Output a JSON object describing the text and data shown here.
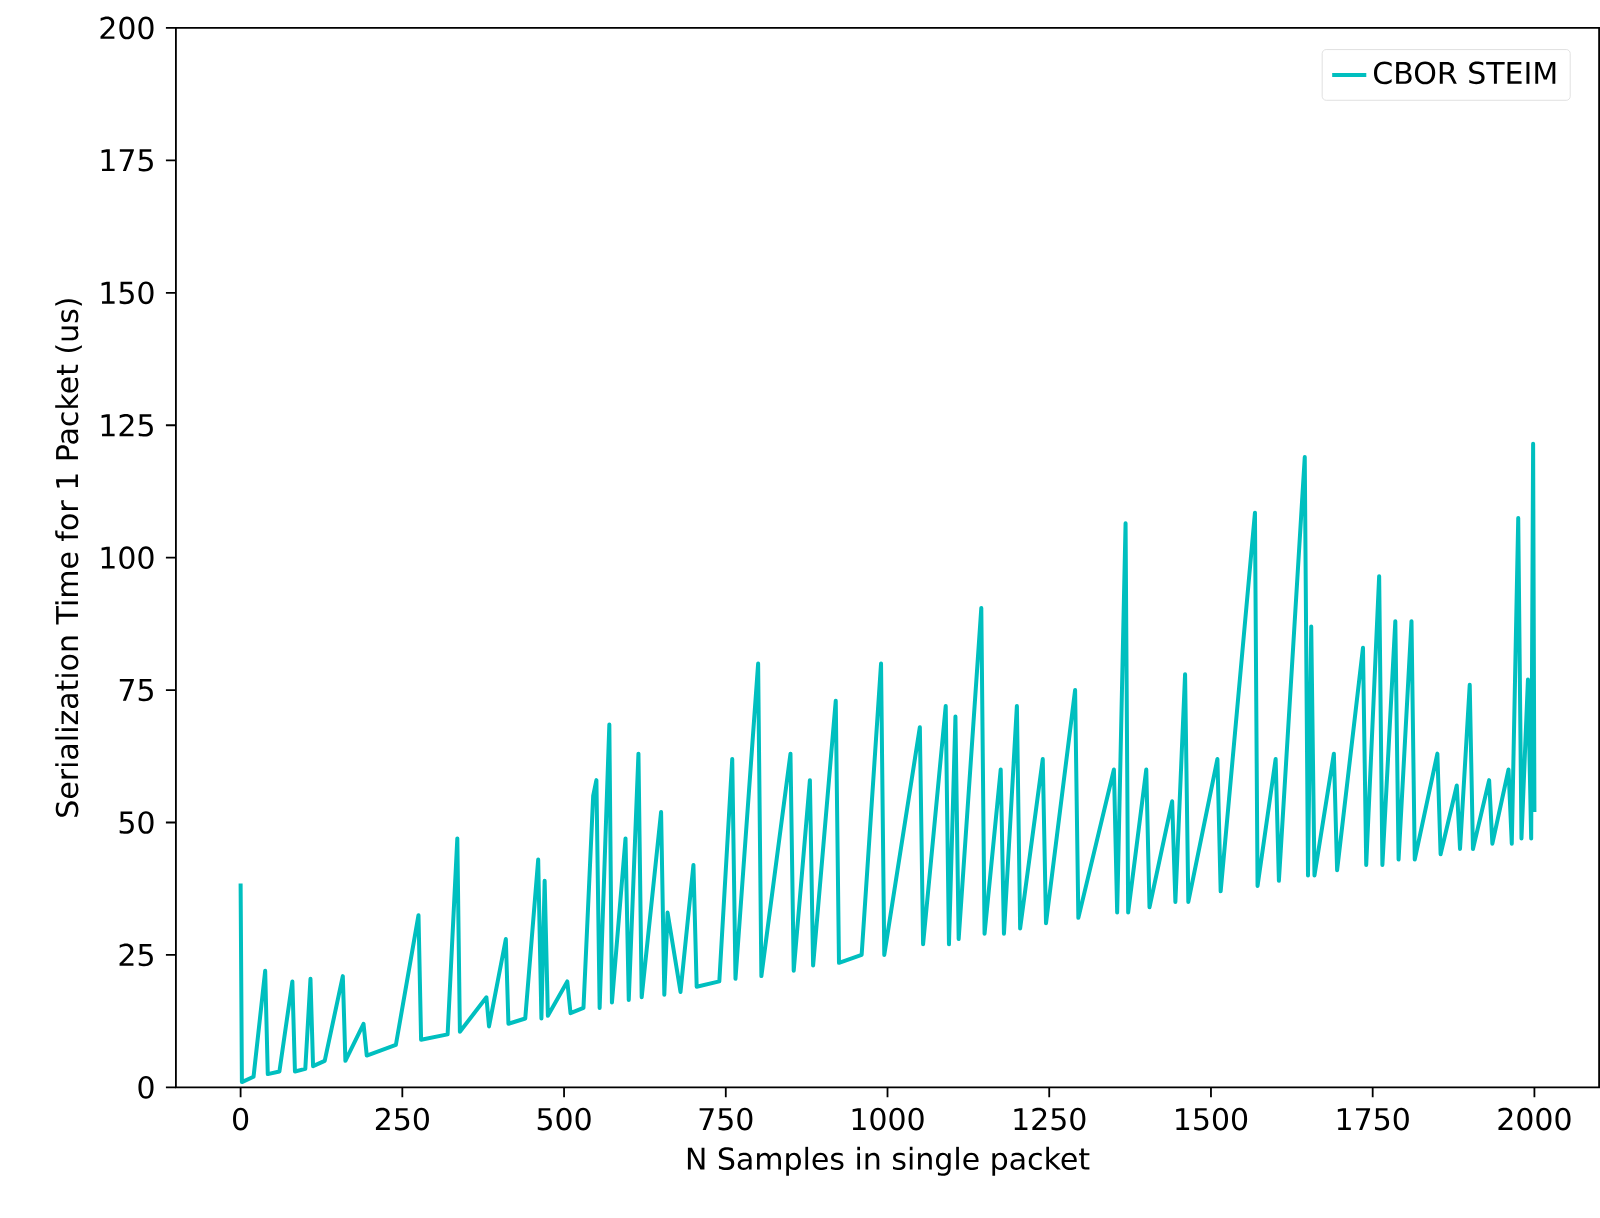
{
  "chart_data": {
    "type": "line",
    "xlabel": "N Samples in single packet",
    "ylabel": "Serialization Time for 1 Packet (us)",
    "xlim": [
      -100,
      2100
    ],
    "ylim": [
      0,
      200
    ],
    "xticks": [
      0,
      250,
      500,
      750,
      1000,
      1250,
      1500,
      1750,
      2000
    ],
    "yticks": [
      0,
      25,
      50,
      75,
      100,
      125,
      150,
      175,
      200
    ],
    "legend": "top right",
    "grid": false,
    "marker": "none",
    "line_style": "solid",
    "series": [
      {
        "name": "CBOR STEIM",
        "color": "#00bfbf",
        "x": [
          0,
          2,
          20,
          38,
          42,
          60,
          80,
          84,
          100,
          108,
          112,
          130,
          158,
          162,
          190,
          195,
          240,
          275,
          279,
          320,
          335,
          339,
          380,
          384,
          410,
          414,
          440,
          460,
          465,
          470,
          475,
          505,
          510,
          530,
          545,
          550,
          555,
          570,
          574,
          595,
          600,
          615,
          620,
          650,
          655,
          660,
          680,
          700,
          705,
          740,
          760,
          765,
          800,
          805,
          850,
          855,
          880,
          885,
          920,
          925,
          960,
          990,
          995,
          1050,
          1055,
          1090,
          1095,
          1105,
          1110,
          1145,
          1150,
          1175,
          1180,
          1200,
          1205,
          1240,
          1245,
          1290,
          1295,
          1350,
          1355,
          1368,
          1372,
          1400,
          1405,
          1440,
          1445,
          1460,
          1465,
          1510,
          1515,
          1568,
          1572,
          1600,
          1605,
          1645,
          1650,
          1655,
          1660,
          1690,
          1695,
          1735,
          1740,
          1760,
          1765,
          1785,
          1790,
          1810,
          1815,
          1850,
          1855,
          1880,
          1885,
          1900,
          1905,
          1930,
          1935,
          1960,
          1965,
          1975,
          1980,
          1990,
          1995,
          1998,
          2000
        ],
        "values": [
          38.5,
          1,
          2,
          22,
          2.5,
          3,
          20,
          3,
          3.5,
          20.5,
          4,
          5,
          21,
          5,
          12,
          6,
          8,
          32.5,
          9,
          10,
          47,
          10.5,
          17,
          11.5,
          28,
          12,
          13,
          43,
          13,
          39,
          13.5,
          20,
          14,
          15,
          55,
          58,
          15,
          68.5,
          16,
          47,
          16.5,
          63,
          17,
          52,
          17.5,
          33,
          18,
          42,
          19,
          20,
          62,
          20.5,
          80,
          21,
          63,
          22,
          58,
          23,
          73,
          23.5,
          25,
          80,
          25,
          68,
          27,
          72,
          27,
          70,
          28,
          90.5,
          29,
          60,
          29,
          72,
          30,
          62,
          31,
          75,
          32,
          60,
          33,
          106.5,
          33,
          60,
          34,
          54,
          35,
          78,
          35,
          62,
          37,
          108.5,
          38,
          62,
          39,
          119,
          40,
          87,
          40,
          63,
          41,
          83,
          42,
          96.5,
          42,
          88,
          43,
          88,
          43,
          63,
          44,
          57,
          45,
          76,
          45,
          58,
          46,
          60,
          46,
          107.5,
          47,
          77,
          47,
          121.5,
          52
        ]
      }
    ]
  }
}
